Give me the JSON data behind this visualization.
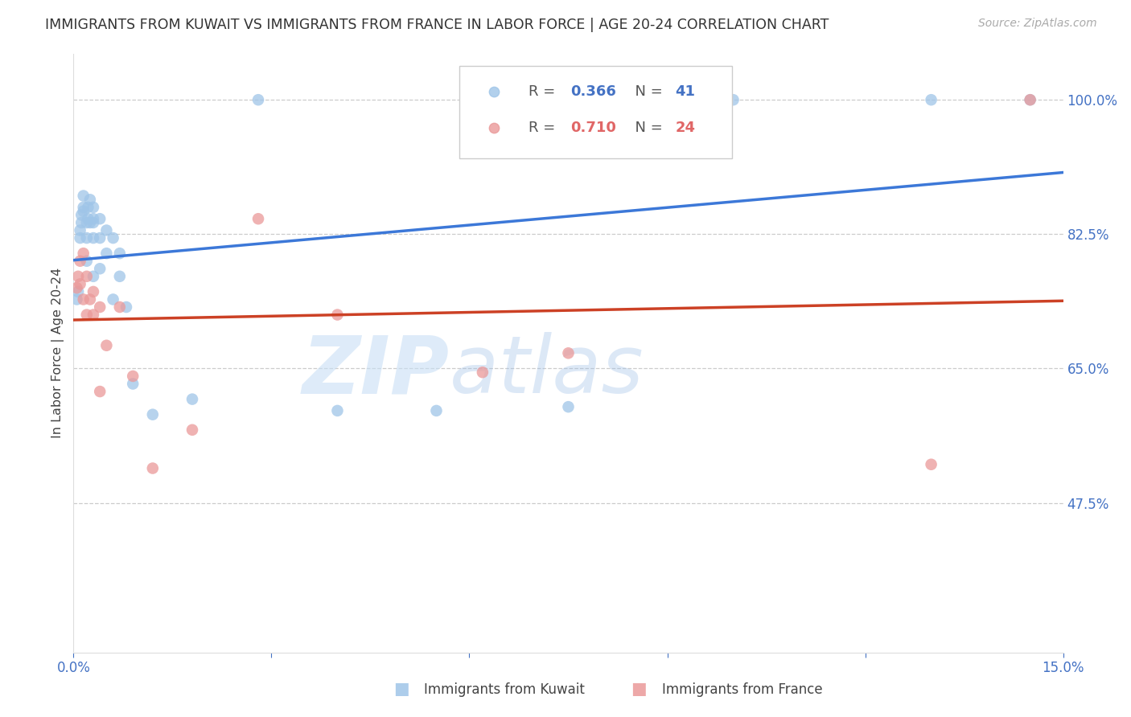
{
  "title": "IMMIGRANTS FROM KUWAIT VS IMMIGRANTS FROM FRANCE IN LABOR FORCE | AGE 20-24 CORRELATION CHART",
  "source": "Source: ZipAtlas.com",
  "ylabel": "In Labor Force | Age 20-24",
  "x_min": 0.0,
  "x_max": 0.15,
  "y_min": 0.28,
  "y_max": 1.06,
  "right_yticks": [
    1.0,
    0.825,
    0.65,
    0.475
  ],
  "right_yticklabels": [
    "100.0%",
    "82.5%",
    "65.0%",
    "47.5%"
  ],
  "xticks": [
    0.0,
    0.03,
    0.06,
    0.09,
    0.12,
    0.15
  ],
  "xticklabels": [
    "0.0%",
    "",
    "",
    "",
    "",
    "15.0%"
  ],
  "kuwait_color": "#9fc5e8",
  "france_color": "#ea9999",
  "kuwait_line_color": "#3c78d8",
  "france_line_color": "#cc4125",
  "legend_kuwait_R": "0.366",
  "legend_kuwait_N": "41",
  "legend_france_R": "0.710",
  "legend_france_N": "24",
  "kuwait_x": [
    0.0005,
    0.0007,
    0.001,
    0.001,
    0.0012,
    0.0012,
    0.0015,
    0.0015,
    0.0015,
    0.002,
    0.002,
    0.002,
    0.0022,
    0.0022,
    0.0025,
    0.0025,
    0.003,
    0.003,
    0.003,
    0.003,
    0.003,
    0.004,
    0.004,
    0.004,
    0.005,
    0.005,
    0.006,
    0.006,
    0.007,
    0.007,
    0.008,
    0.009,
    0.012,
    0.018,
    0.028,
    0.04,
    0.055,
    0.075,
    0.1,
    0.13,
    0.145
  ],
  "kuwait_y": [
    0.74,
    0.75,
    0.82,
    0.83,
    0.84,
    0.85,
    0.855,
    0.86,
    0.875,
    0.79,
    0.82,
    0.84,
    0.845,
    0.86,
    0.84,
    0.87,
    0.77,
    0.82,
    0.84,
    0.845,
    0.86,
    0.78,
    0.82,
    0.845,
    0.8,
    0.83,
    0.74,
    0.82,
    0.77,
    0.8,
    0.73,
    0.63,
    0.59,
    0.61,
    1.0,
    0.595,
    0.595,
    0.6,
    1.0,
    1.0,
    1.0
  ],
  "france_x": [
    0.0005,
    0.0007,
    0.001,
    0.001,
    0.0015,
    0.0015,
    0.002,
    0.002,
    0.0025,
    0.003,
    0.003,
    0.004,
    0.004,
    0.005,
    0.007,
    0.009,
    0.012,
    0.018,
    0.028,
    0.04,
    0.062,
    0.075,
    0.13,
    0.145
  ],
  "france_y": [
    0.755,
    0.77,
    0.76,
    0.79,
    0.74,
    0.8,
    0.72,
    0.77,
    0.74,
    0.72,
    0.75,
    0.62,
    0.73,
    0.68,
    0.73,
    0.64,
    0.52,
    0.57,
    0.845,
    0.72,
    0.645,
    0.67,
    0.525,
    1.0
  ],
  "background_color": "#ffffff",
  "grid_color": "#cccccc",
  "title_color": "#333333",
  "axis_color": "#4472c4",
  "r_color_kuwait": "#4472c4",
  "n_color_kuwait": "#4472c4",
  "r_color_france": "#e06666",
  "n_color_france": "#e06666"
}
